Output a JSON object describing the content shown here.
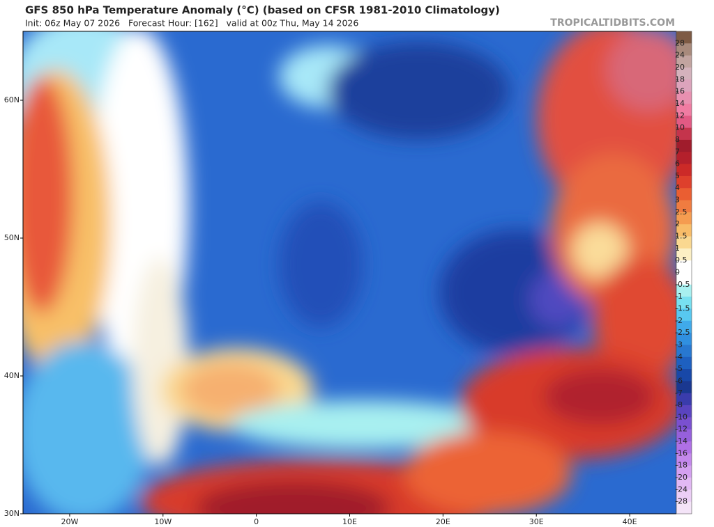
{
  "header": {
    "title": "GFS 850 hPa Temperature Anomaly (°C) (based on CFSR 1981-2010 Climatology)",
    "subtitle": "Init: 06z May 07 2026   Forecast Hour: [162]   valid at 00z Thu, May 14 2026",
    "watermark": "TROPICALTIDBITS.COM"
  },
  "map": {
    "lon_range": [
      -25,
      45
    ],
    "lat_range": [
      30,
      65
    ],
    "lon_ticks": [
      {
        "value": -20,
        "label": "20W"
      },
      {
        "value": -10,
        "label": "10W"
      },
      0,
      {
        "value": 10,
        "label": "10E"
      },
      {
        "value": 20,
        "label": "20E"
      },
      {
        "value": 30,
        "label": "30E"
      },
      {
        "value": 40,
        "label": "40E"
      }
    ],
    "lat_ticks": [
      {
        "value": 60,
        "label": "60N"
      },
      {
        "value": 50,
        "label": "50N"
      },
      {
        "value": 40,
        "label": "40N"
      },
      {
        "value": 30,
        "label": "30N"
      }
    ]
  },
  "colorbar": {
    "levels": [
      28,
      24,
      20,
      18,
      16,
      14,
      12,
      10,
      8,
      7,
      6,
      5,
      4,
      3,
      2.5,
      2,
      1.5,
      1,
      0.5,
      0,
      -0.5,
      -1,
      -1.5,
      -2,
      -2.5,
      -3,
      -4,
      -5,
      -6,
      -7,
      -8,
      -10,
      -12,
      -14,
      -16,
      -18,
      -20,
      -24,
      -28
    ],
    "colors": [
      "#7d5a44",
      "#a88a7c",
      "#c2a4a0",
      "#d4b2bc",
      "#dca4bc",
      "#e890b0",
      "#f07ca2",
      "#e25a84",
      "#c4344c",
      "#a01c2c",
      "#b4202c",
      "#cc2a28",
      "#de402c",
      "#ea5e32",
      "#f07c40",
      "#f59c50",
      "#f8bc68",
      "#fad890",
      "#fcefc4",
      "#ffffff",
      "#ffffff",
      "#a8f0f0",
      "#78e0f0",
      "#58c8f0",
      "#40aaea",
      "#3090e0",
      "#2878d0",
      "#1e60c0",
      "#1848a8",
      "#1a3890",
      "#3a3cac",
      "#5a44c0",
      "#7a50d0",
      "#9660dc",
      "#b070e6",
      "#c488ec",
      "#d4a0f0",
      "#e2b8f4",
      "#eccef6",
      "#f4e4f8"
    ]
  }
}
